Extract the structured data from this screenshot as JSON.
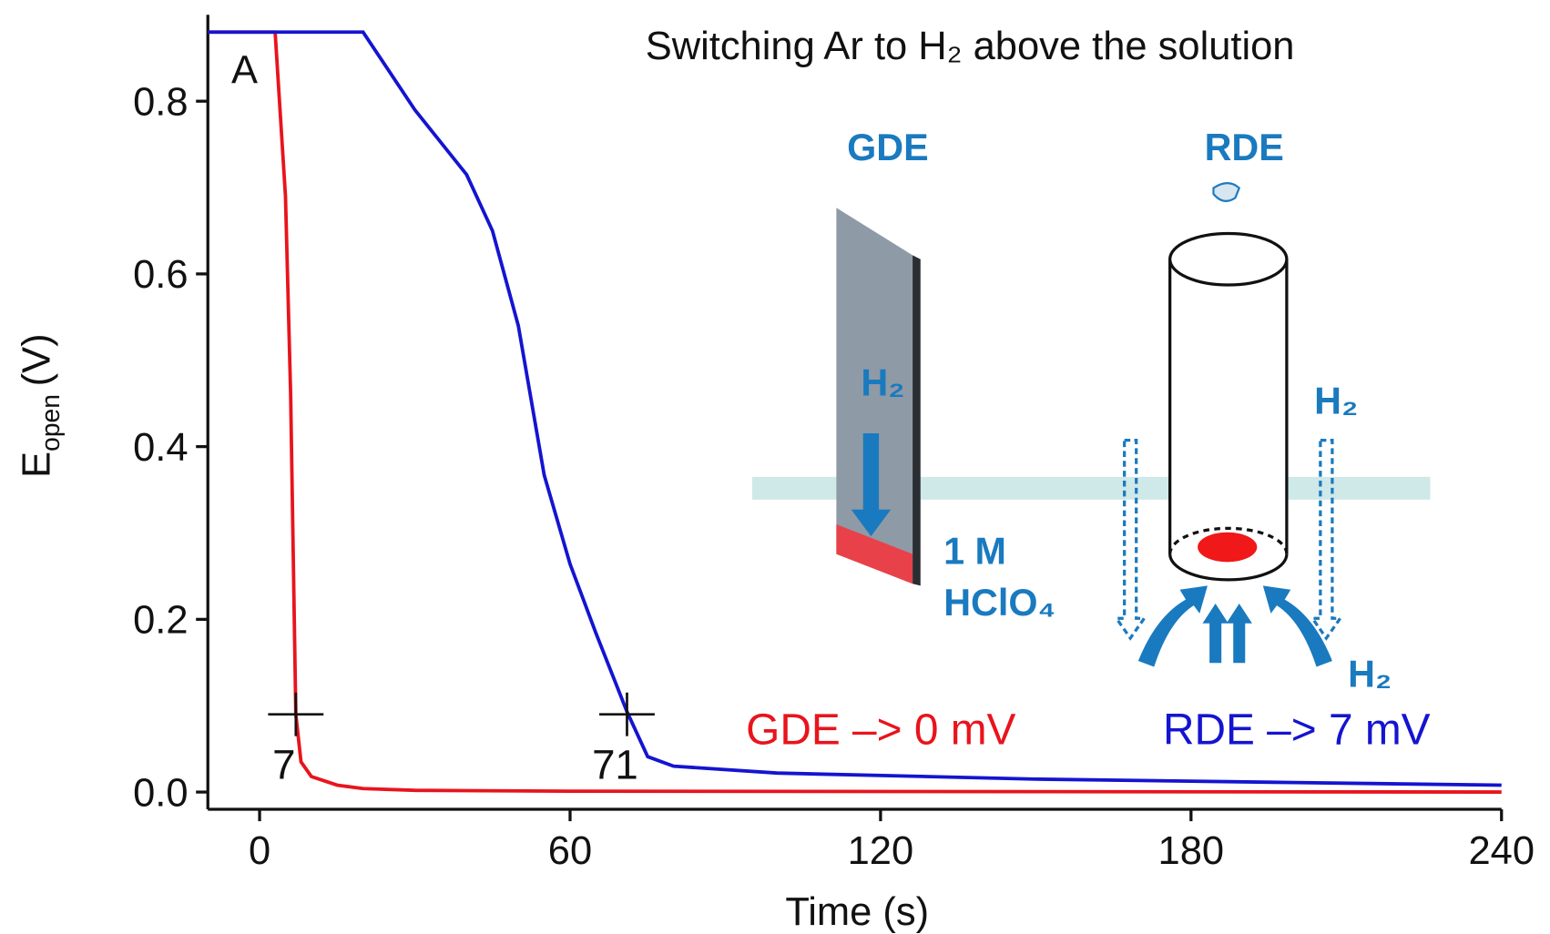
{
  "chart_data": {
    "type": "line",
    "title": "Switching Ar to H₂ above the solution",
    "panel_label": "A",
    "xlabel": "Time (s)",
    "ylabel": {
      "symbol": "E",
      "subscript": "open",
      "unit": "(V)"
    },
    "xlim": [
      -10,
      240
    ],
    "ylim": [
      -0.02,
      0.9
    ],
    "xticks": [
      0,
      60,
      120,
      180,
      240
    ],
    "yticks": [
      {
        "value": 0,
        "label": "0.0"
      },
      0.2,
      0.4,
      0.6,
      0.8
    ],
    "series": [
      {
        "name": "GDE –> 0 mV",
        "color": "#e8141c",
        "x": [
          -10,
          3,
          5,
          6,
          7,
          8,
          10,
          15,
          20,
          30,
          60,
          240
        ],
        "values": [
          0.88,
          0.88,
          0.69,
          0.46,
          0.09,
          0.035,
          0.018,
          0.008,
          0.004,
          0.002,
          0.001,
          0
        ]
      },
      {
        "name": "RDE –> 7 mV",
        "color": "#1414d0",
        "x": [
          -10,
          20,
          25,
          30,
          40,
          45,
          50,
          55,
          60,
          65,
          71,
          75,
          80,
          100,
          150,
          200,
          240
        ],
        "values": [
          0.88,
          0.88,
          0.835,
          0.79,
          0.715,
          0.65,
          0.54,
          0.367,
          0.264,
          0.184,
          0.093,
          0.041,
          0.03,
          0.022,
          0.015,
          0.011,
          0.008
        ]
      }
    ],
    "annotations": [
      {
        "text": "7",
        "x": 7,
        "y": 0.09
      },
      {
        "text": "71",
        "x": 71,
        "y": 0.09
      }
    ],
    "inset": {
      "gde": "GDE",
      "rde": "RDE",
      "h2": [
        "H₂",
        "H₂",
        "H₂"
      ],
      "electrolyte": [
        "1 M",
        "HClO₄"
      ]
    }
  }
}
